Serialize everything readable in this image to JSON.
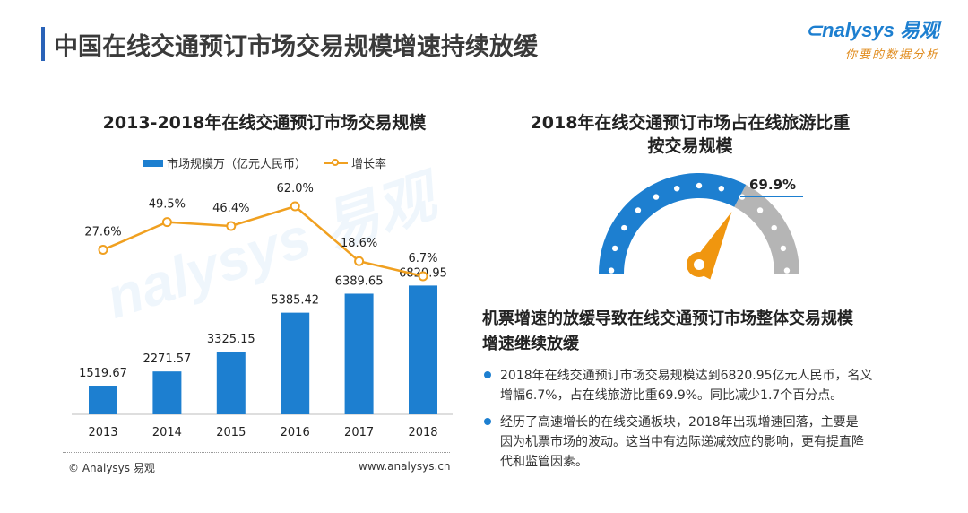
{
  "header": {
    "title": "中国在线交通预订市场交易规模增速持续放缓"
  },
  "logo": {
    "brand": "nalysys 易观",
    "tagline": "你要的数据分析"
  },
  "left_chart": {
    "title": "2013-2018年在线交通预订市场交易规模",
    "legend_bar": "市场规模万（亿元人民币）",
    "legend_line": "增长率"
  },
  "chart_data": [
    {
      "type": "bar",
      "title": "2013-2018年在线交通预订市场交易规模",
      "categories": [
        "2013",
        "2014",
        "2015",
        "2016",
        "2017",
        "2018"
      ],
      "series": [
        {
          "name": "市场规模万（亿元人民币）",
          "type": "bar",
          "values": [
            1519.67,
            2271.57,
            3325.15,
            5385.42,
            6389.65,
            6820.95
          ],
          "labels": [
            "1519.67",
            "2271.57",
            "3325.15",
            "5385.42",
            "6389.65",
            "6820.95"
          ],
          "color": "#1d7fd0"
        },
        {
          "name": "增长率",
          "type": "line",
          "values": [
            27.6,
            49.5,
            46.4,
            62.0,
            18.6,
            6.7
          ],
          "labels": [
            "27.6%",
            "49.5%",
            "46.4%",
            "62.0%",
            "18.6%",
            "6.7%"
          ],
          "unit": "%",
          "color": "#f0a020"
        }
      ],
      "xlabel": "",
      "ylabel": "",
      "grid": false,
      "legend": "top"
    },
    {
      "type": "gauge",
      "title": "2018年在线交通预订市场占在线旅游比重按交易规模",
      "value": 69.9,
      "label": "69.9%",
      "range": [
        0,
        100
      ],
      "colors": {
        "filled": "#1d7fd0",
        "rest": "#b5b5b5",
        "needle": "#f0960f"
      }
    }
  ],
  "right_panel": {
    "gauge_title_line1": "2018年在线交通预订市场占在线旅游比重",
    "gauge_title_line2": "按交易规模",
    "gauge_value_label": "69.9%",
    "heading_line1": "机票增速的放缓导致在线交通预订市场整体交易规模",
    "heading_line2": "增速继续放缓",
    "bullets": [
      {
        "line1": "2018年在线交通预订市场交易规模达到6820.95亿元人民币，名义",
        "line2": "增幅6.7%，占在线旅游比重69.9%。同比减少1.7个百分点。"
      },
      {
        "line1": "经历了高速增长的在线交通板块，2018年出现增速回落，主要是",
        "line2": "因为机票市场的波动。这当中有边际递减效应的影响，更有提直降",
        "line3": "代和监管因素。"
      }
    ]
  },
  "footer": {
    "copyright": "© Analysys 易观",
    "website": "www.analysys.cn"
  }
}
